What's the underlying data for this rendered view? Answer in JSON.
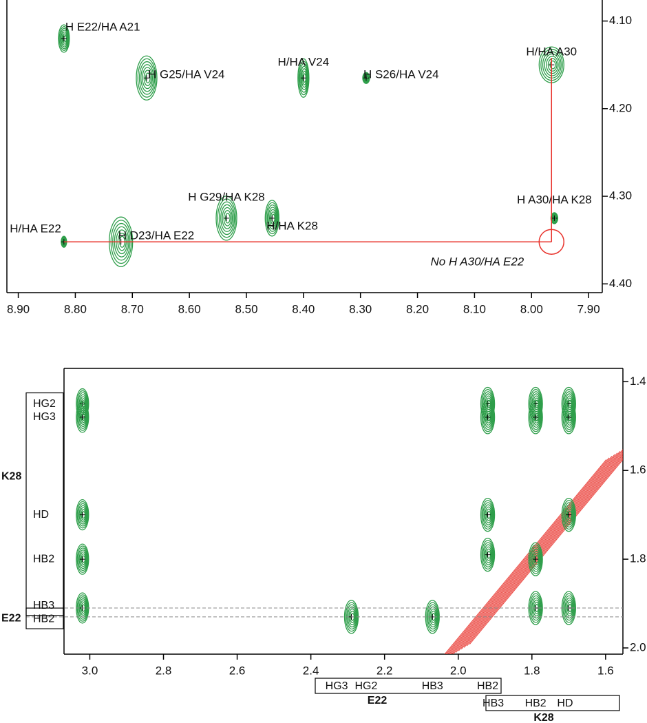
{
  "chart_data": [
    {
      "type": "scatter",
      "color": "#2e9e4a",
      "xlim": [
        8.92,
        7.876
      ],
      "ylim": [
        4.076,
        4.41
      ],
      "xticks": [
        {
          "value": 8.9,
          "label": "8.90"
        },
        {
          "value": 8.8,
          "label": "8.80"
        },
        {
          "value": 8.7,
          "label": "8.70"
        },
        {
          "value": 8.6,
          "label": "8.60"
        },
        {
          "value": 8.5,
          "label": "8.50"
        },
        {
          "value": 8.4,
          "label": "8.40"
        },
        {
          "value": 8.3,
          "label": "8.30"
        },
        {
          "value": 8.2,
          "label": "8.20"
        },
        {
          "value": 8.1,
          "label": "8.10"
        },
        {
          "value": 8.0,
          "label": "8.00"
        },
        {
          "value": 7.9,
          "label": "7.90"
        }
      ],
      "yticks": [
        {
          "value": 4.1,
          "label": "4.10"
        },
        {
          "value": 4.2,
          "label": "4.20"
        },
        {
          "value": 4.3,
          "label": "4.30"
        },
        {
          "value": 4.4,
          "label": "4.40"
        }
      ],
      "x": [
        8.82,
        8.675,
        8.4,
        8.29,
        7.965,
        8.535,
        8.455,
        8.82,
        8.72,
        7.96
      ],
      "y": [
        4.12,
        4.165,
        4.165,
        4.165,
        4.15,
        4.325,
        4.325,
        4.352,
        4.352,
        4.325
      ],
      "labels": [
        "H E22/HA A21",
        "H G25/HA V24",
        "H/HA V24",
        "H S26/HA V24",
        "H/HA A30",
        "H G29/HA K28",
        "H/HA K28",
        "H/HA E22",
        "H D23/HA E22",
        "H A30/HA K28"
      ],
      "annotation": "No H A30/HA E22",
      "annotation_color": "#e8312a"
    },
    {
      "type": "scatter",
      "color": "#2e9e4a",
      "diagonal_color": "#e8312a",
      "xlim": [
        3.07,
        1.553
      ],
      "ylim": [
        1.37,
        2.014
      ],
      "xticks": [
        {
          "value": 3.0,
          "label": "3.0"
        },
        2.8,
        2.6,
        2.4,
        2.2,
        {
          "value": 2.0,
          "label": "2.0"
        },
        1.8,
        1.6
      ],
      "yticks": [
        1.4,
        1.6,
        1.8,
        {
          "value": 2.0,
          "label": "2.0"
        }
      ],
      "x": [
        3.02,
        3.02,
        3.02,
        3.02,
        3.02,
        2.29,
        2.07,
        1.92,
        1.92,
        1.92,
        1.92,
        1.79,
        1.79,
        1.79,
        1.79,
        1.7,
        1.7,
        1.7,
        1.7
      ],
      "y": [
        1.45,
        1.48,
        1.7,
        1.8,
        1.91,
        1.93,
        1.93,
        1.45,
        1.48,
        1.7,
        1.79,
        1.45,
        1.48,
        1.8,
        1.91,
        1.45,
        1.48,
        1.7,
        1.91
      ],
      "left_groups": [
        {
          "name": "K28",
          "labels": [
            "HG2",
            "HG3",
            "HD",
            "HB2",
            "HB3"
          ]
        },
        {
          "name": "E22",
          "labels": [
            "HB2"
          ]
        }
      ],
      "bottom_groups": [
        {
          "name": "E22",
          "labels": [
            "HG3",
            "HG2",
            "HB3",
            "HB2"
          ]
        },
        {
          "name": "K28",
          "labels": [
            "HB3",
            "HB2",
            "HD"
          ]
        }
      ]
    }
  ]
}
